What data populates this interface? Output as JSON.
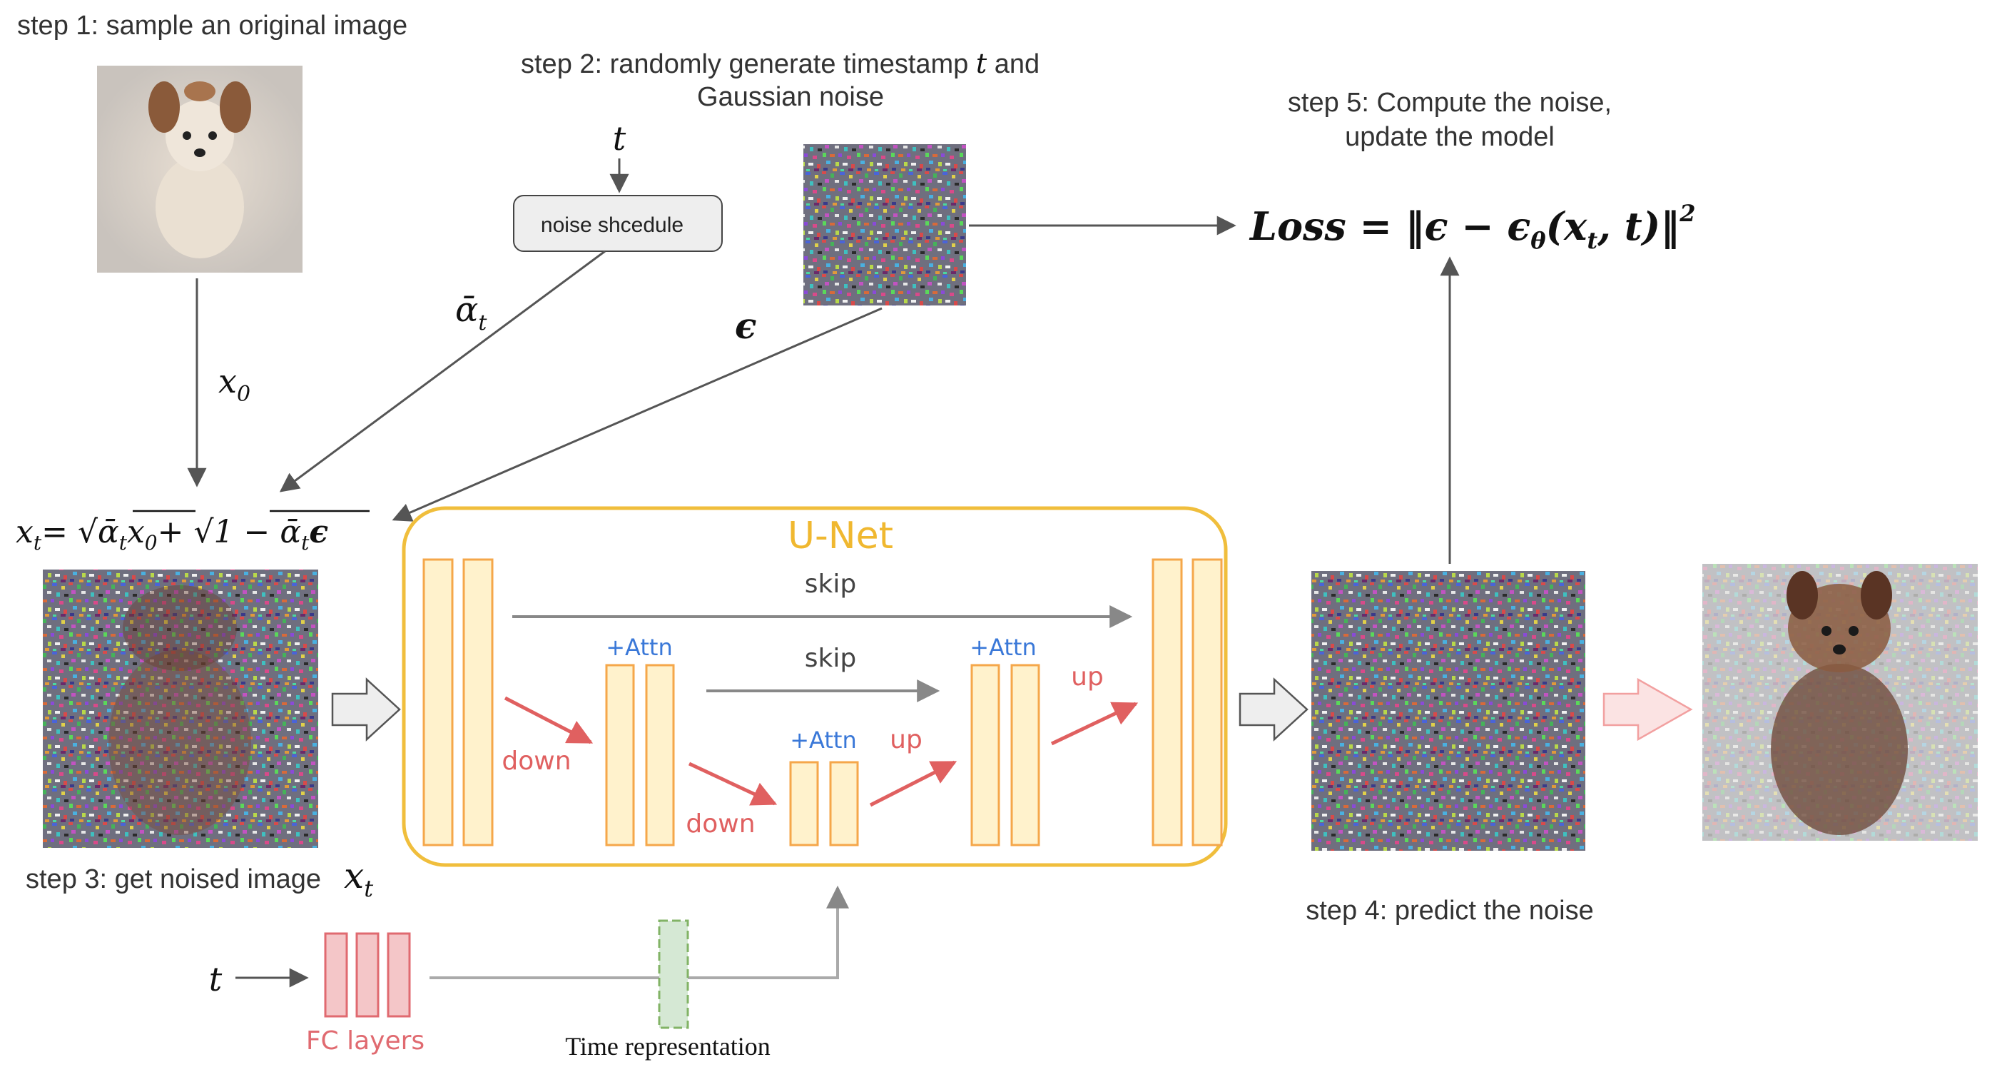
{
  "steps": {
    "step1": "step 1: sample an original image",
    "step2_line1": "step 2: randomly generate timestamp",
    "step2_t": "t",
    "step2_and": "and",
    "step2_line2": "Gaussian noise",
    "step3": "step 3: get noised image",
    "step3_symbol": "x",
    "step3_sub": "t",
    "step4": "step 4: predict the noise",
    "step5_line1": "step 5: Compute the noise,",
    "step5_line2": "update the model"
  },
  "labels": {
    "t_top": "t",
    "noise_schedule": "noise shcedule",
    "alpha_bar": "ᾱ",
    "alpha_sub": "t",
    "epsilon": "ϵ",
    "x0": "x",
    "x0_sub": "0",
    "loss": "Loss = ‖ϵ − ϵ",
    "loss_theta": "θ",
    "loss_args": "(x",
    "loss_args_sub": "t",
    "loss_tail": ", t)‖",
    "loss_sup": "2",
    "xt_lhs": "x",
    "xt_lhs_sub": "t",
    "xt_eq": "= √",
    "xt_a1": "ᾱ",
    "xt_a1_sub": "t",
    "xt_x0": "x",
    "xt_x0_sub": "0",
    "xt_plus": "+ √",
    "xt_1minus": "1 − ᾱ",
    "xt_a2_sub": "t",
    "xt_eps": "ϵ",
    "unet": "U-Net",
    "skip_top": "skip",
    "skip_mid": "skip",
    "attn1": "+Attn",
    "attn2": "+Attn",
    "attn3": "+Attn",
    "down1": "down",
    "down2": "down",
    "up1": "up",
    "up2": "up",
    "t_bottom": "t",
    "fc_layers": "FC layers",
    "time_rep": "Time representation"
  },
  "colors": {
    "unet_border": "#f0be3c",
    "block_fill": "#fff2cc",
    "block_stroke": "#f5a74a",
    "arrow_red": "#e06060",
    "arrow_gray": "#888888",
    "attn_blue": "#3a78d8",
    "fc_fill": "#f4c6c8",
    "fc_stroke": "#e06a70",
    "time_fill": "#d5e8d4",
    "time_stroke": "#82b366",
    "schedule_fill": "#eeeeee"
  },
  "images": {
    "original": "dog-photo",
    "noise_sample": "gaussian-noise",
    "noised": "noised-dog",
    "predicted_noise": "predicted-noise",
    "denoised": "partially-denoised-dog"
  }
}
